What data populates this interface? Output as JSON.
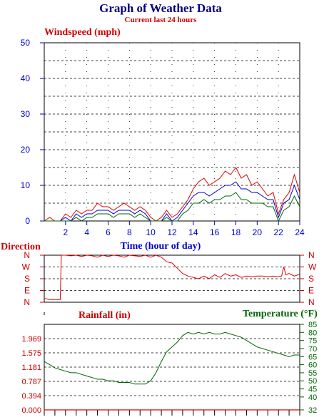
{
  "title": "Graph of Weather Data",
  "subtitle": "Current last 24 hours",
  "chart_data": [
    {
      "type": "line",
      "ylabel": "Windspeed (mph)",
      "xlabel": "Time (hour of day)",
      "xlim": [
        0,
        24
      ],
      "ylim": [
        0,
        50
      ],
      "yticks": [
        "0",
        "10",
        "20",
        "30",
        "40",
        "50"
      ],
      "xticks": [
        "2",
        "4",
        "6",
        "8",
        "10",
        "12",
        "14",
        "16",
        "18",
        "20",
        "22",
        "24"
      ],
      "grid": true,
      "x": [
        0,
        0.5,
        1,
        1.5,
        2,
        2.5,
        3,
        3.5,
        4,
        4.5,
        5,
        5.5,
        6,
        6.5,
        7,
        7.5,
        8,
        8.5,
        9,
        9.5,
        10,
        10.5,
        11,
        11.5,
        12,
        12.5,
        13,
        13.5,
        14,
        14.5,
        15,
        15.5,
        16,
        16.5,
        17,
        17.5,
        18,
        18.5,
        19,
        19.5,
        20,
        20.5,
        21,
        21.5,
        22,
        22.5,
        23,
        23.5,
        24
      ],
      "series": [
        {
          "color": "#dd0000",
          "values": [
            0,
            1,
            0,
            0,
            2,
            1,
            3,
            2,
            3,
            3,
            5,
            4,
            4,
            3,
            4,
            5,
            4,
            3,
            4,
            3,
            1,
            0,
            1,
            3,
            1,
            2,
            4,
            6,
            9,
            11,
            12,
            10,
            11,
            12,
            14,
            13,
            15,
            12,
            13,
            10,
            11,
            9,
            7,
            8,
            2,
            6,
            8,
            13,
            8
          ]
        },
        {
          "color": "#0000cc",
          "values": [
            0,
            0,
            0,
            0,
            1,
            0,
            2,
            1,
            2,
            2,
            3,
            3,
            3,
            2,
            3,
            3,
            3,
            2,
            3,
            2,
            0,
            0,
            0,
            2,
            0,
            1,
            3,
            5,
            7,
            8,
            8,
            7,
            8,
            9,
            10,
            10,
            11,
            9,
            9,
            8,
            8,
            7,
            6,
            6,
            1,
            5,
            6,
            10,
            6
          ]
        },
        {
          "color": "#006600",
          "values": [
            0,
            0,
            0,
            0,
            0,
            0,
            1,
            0,
            1,
            1,
            2,
            2,
            2,
            1,
            2,
            2,
            2,
            1,
            2,
            1,
            0,
            0,
            0,
            1,
            0,
            0,
            2,
            3,
            5,
            5,
            6,
            5,
            6,
            6,
            7,
            7,
            8,
            6,
            6,
            5,
            5,
            5,
            4,
            4,
            0,
            3,
            4,
            7,
            4
          ]
        }
      ]
    },
    {
      "type": "line",
      "ylabel": "Direction",
      "xlim": [
        0,
        24
      ],
      "yticks": [
        "N",
        "W",
        "S",
        "E",
        "N"
      ],
      "ylim": [
        0,
        360
      ],
      "grid": true,
      "x": [
        0,
        0.5,
        1,
        1.5,
        1.6,
        2,
        2.5,
        3,
        3.5,
        4,
        4.5,
        5,
        5.5,
        6,
        6.5,
        7,
        7.5,
        8,
        8.5,
        9,
        9.5,
        10,
        10.5,
        11,
        11.5,
        12,
        12.5,
        13,
        13.5,
        14,
        14.5,
        15,
        15.5,
        16,
        16.5,
        17,
        17.5,
        18,
        18.5,
        19,
        19.5,
        20,
        20.5,
        21,
        21.5,
        22,
        22.3,
        22.5,
        22.7,
        23,
        23.5,
        24
      ],
      "series": [
        {
          "color": "#dd0000",
          "values": [
            30,
            20,
            20,
            20,
            360,
            360,
            355,
            360,
            350,
            360,
            355,
            345,
            360,
            350,
            360,
            355,
            345,
            360,
            355,
            350,
            360,
            345,
            360,
            345,
            310,
            300,
            260,
            220,
            200,
            190,
            180,
            200,
            180,
            210,
            190,
            220,
            200,
            210,
            190,
            200,
            195,
            200,
            200,
            195,
            200,
            195,
            200,
            270,
            210,
            220,
            200,
            215
          ]
        }
      ]
    },
    {
      "type": "line",
      "ylabel": "Rainfall (in)",
      "xlim": [
        0,
        24
      ],
      "ylim": [
        0,
        2.362
      ],
      "yticks": [
        "0.000",
        "0.394",
        "0.787",
        "1.181",
        "1.575",
        "1.969"
      ],
      "grid": true,
      "x": [
        0,
        0.5,
        24
      ],
      "series": [
        {
          "color": "#dd0000",
          "values": [
            0,
            0,
            0
          ]
        }
      ]
    },
    {
      "type": "line",
      "ylabel": "Temperature (°F)",
      "xlim": [
        0,
        24
      ],
      "ylim": [
        32,
        85
      ],
      "yticks": [
        "32",
        "40",
        "45",
        "50",
        "55",
        "60",
        "65",
        "70",
        "75",
        "80",
        "85"
      ],
      "x": [
        0,
        0.5,
        1,
        1.5,
        2,
        2.5,
        3,
        3.5,
        4,
        4.5,
        5,
        5.5,
        6,
        6.5,
        7,
        7.5,
        8,
        8.5,
        9,
        9.5,
        10,
        10.5,
        11,
        11.5,
        12,
        12.5,
        13,
        13.5,
        14,
        14.5,
        15,
        15.5,
        16,
        16.5,
        17,
        17.5,
        18,
        18.5,
        19,
        19.5,
        20,
        20.5,
        21,
        21.5,
        22,
        22.5,
        23,
        23.5,
        24
      ],
      "series": [
        {
          "color": "#006600",
          "values": [
            62,
            60,
            58,
            57,
            56,
            55,
            55,
            54,
            53,
            52,
            51,
            51,
            50,
            50,
            49,
            49,
            49,
            48,
            48,
            48,
            50,
            55,
            62,
            68,
            71,
            74,
            78,
            80,
            79,
            80,
            79,
            80,
            79,
            79,
            80,
            79,
            78,
            77,
            75,
            73,
            71,
            70,
            69,
            68,
            67,
            66,
            65,
            66,
            66
          ]
        }
      ]
    }
  ]
}
